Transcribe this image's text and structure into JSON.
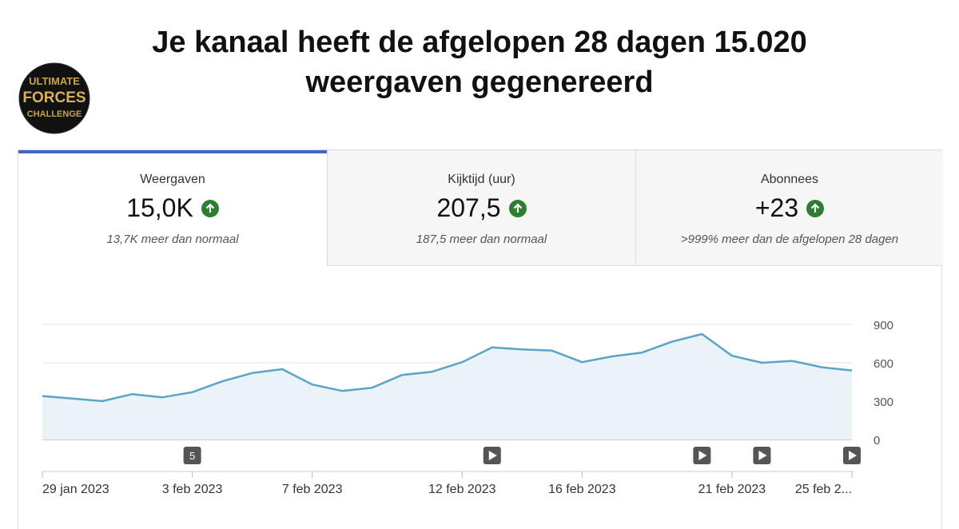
{
  "header": {
    "title": "Je kanaal heeft de afgelopen 28 dagen 15.020 weergaven gegenereerd",
    "logo": [
      "ULTIMATE",
      "FORCES",
      "CHALLENGE"
    ]
  },
  "tabs": [
    {
      "label": "Weergaven",
      "value": "15,0K",
      "note": "13,7K meer dan normaal"
    },
    {
      "label": "Kijktijd (uur)",
      "value": "207,5",
      "note": "187,5 meer dan normaal"
    },
    {
      "label": "Abonnees",
      "value": "+23",
      "note": ">999% meer dan de afgelopen 28 dagen"
    }
  ],
  "chart_data": {
    "type": "area",
    "color": "#5aa4c6",
    "fill": "#eaf3f7",
    "categories": [
      "29 jan 2023",
      null,
      null,
      null,
      null,
      "3 feb 2023",
      null,
      null,
      null,
      "7 feb 2023",
      null,
      null,
      null,
      null,
      "12 feb 2023",
      null,
      null,
      null,
      "16 feb 2023",
      null,
      null,
      null,
      null,
      "21 feb 2023",
      null,
      null,
      null,
      "25 feb 2..."
    ],
    "values": [
      340,
      320,
      300,
      355,
      330,
      370,
      455,
      520,
      550,
      430,
      380,
      405,
      505,
      530,
      605,
      720,
      705,
      695,
      605,
      650,
      680,
      765,
      825,
      655,
      600,
      615,
      565,
      540
    ],
    "events": [
      null,
      null,
      null,
      null,
      null,
      5,
      null,
      null,
      null,
      null,
      null,
      null,
      null,
      null,
      null,
      1,
      null,
      null,
      null,
      null,
      null,
      null,
      1,
      null,
      1,
      null,
      null,
      1
    ],
    "ylim": [
      0,
      900
    ],
    "yticks": [
      0,
      300,
      600,
      900
    ],
    "grid": true
  }
}
